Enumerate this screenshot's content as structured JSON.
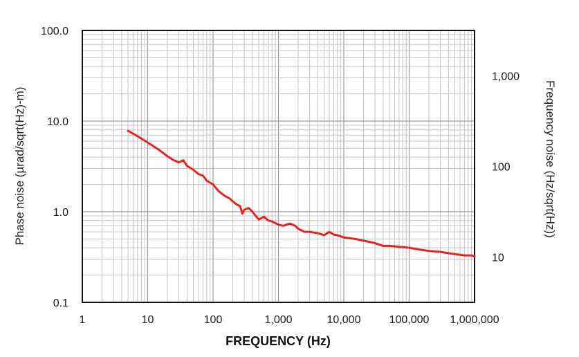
{
  "chart_data": {
    "type": "line",
    "title": "",
    "xlabel": "FREQUENCY (Hz)",
    "ylabel": "Phase noise (µrad/sqrt(Hz)-m)",
    "y2label": "Frequency noise (Hz/sqrt(Hz))",
    "xscale": "log",
    "yscale": "log",
    "xlim": [
      1,
      1000000
    ],
    "ylim": [
      0.1,
      100
    ],
    "y2lim": [
      3.16,
      3160
    ],
    "grid": true,
    "x_ticks": [
      {
        "value": 1,
        "label": "1"
      },
      {
        "value": 10,
        "label": "10"
      },
      {
        "value": 100,
        "label": "100"
      },
      {
        "value": 1000,
        "label": "1,000"
      },
      {
        "value": 10000,
        "label": "10,000"
      },
      {
        "value": 100000,
        "label": "100,000"
      },
      {
        "value": 1000000,
        "label": "1,000,000"
      }
    ],
    "y_ticks": [
      {
        "value": 0.1,
        "label": "0.1"
      },
      {
        "value": 1,
        "label": "1.0"
      },
      {
        "value": 10,
        "label": "10.0"
      },
      {
        "value": 100,
        "label": "100.0"
      }
    ],
    "y2_ticks": [
      {
        "value": 10,
        "label": "10"
      },
      {
        "value": 100,
        "label": "100"
      },
      {
        "value": 1000,
        "label": "1,000"
      }
    ],
    "series": [
      {
        "color": "#e8231f",
        "x": [
          5,
          7,
          10,
          15,
          20,
          25,
          30,
          35,
          40,
          50,
          60,
          70,
          80,
          100,
          120,
          150,
          180,
          200,
          230,
          260,
          280,
          300,
          350,
          400,
          450,
          500,
          600,
          700,
          800,
          1000,
          1200,
          1500,
          1800,
          2000,
          2500,
          3000,
          4000,
          5000,
          6000,
          7000,
          8000,
          10000,
          15000,
          20000,
          30000,
          40000,
          50000,
          70000,
          100000,
          150000,
          200000,
          300000,
          500000,
          700000,
          900000,
          1000000
        ],
        "y": [
          7.8,
          6.8,
          5.8,
          4.8,
          4.1,
          3.7,
          3.5,
          3.7,
          3.2,
          2.9,
          2.6,
          2.5,
          2.2,
          2.0,
          1.7,
          1.5,
          1.4,
          1.3,
          1.2,
          1.15,
          0.95,
          1.05,
          1.1,
          1.0,
          0.9,
          0.82,
          0.88,
          0.8,
          0.78,
          0.72,
          0.7,
          0.74,
          0.7,
          0.65,
          0.6,
          0.6,
          0.58,
          0.55,
          0.6,
          0.56,
          0.55,
          0.52,
          0.5,
          0.48,
          0.45,
          0.42,
          0.42,
          0.41,
          0.4,
          0.38,
          0.37,
          0.36,
          0.34,
          0.33,
          0.33,
          0.32
        ]
      }
    ]
  }
}
